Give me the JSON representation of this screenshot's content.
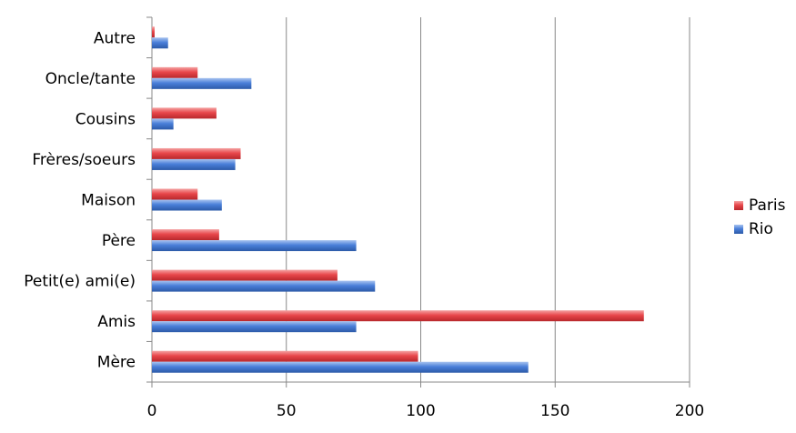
{
  "chart_data": {
    "type": "bar",
    "orientation": "horizontal",
    "categories": [
      "Mère",
      "Amis",
      "Petit(e) ami(e)",
      "Père",
      "Maison",
      "Frères/soeurs",
      "Cousins",
      "Oncle/tante",
      "Autre"
    ],
    "series": [
      {
        "name": "Paris",
        "color": "#e8474b",
        "values": [
          99,
          183,
          69,
          25,
          17,
          33,
          24,
          17,
          1
        ]
      },
      {
        "name": "Rio",
        "color": "#4a7fd9",
        "values": [
          140,
          76,
          83,
          76,
          26,
          31,
          8,
          37,
          6
        ]
      }
    ],
    "xlim": [
      0,
      200
    ],
    "xticks": [
      "0",
      "50",
      "100",
      "150",
      "200"
    ],
    "grid": "vertical",
    "legend_position": "right"
  }
}
